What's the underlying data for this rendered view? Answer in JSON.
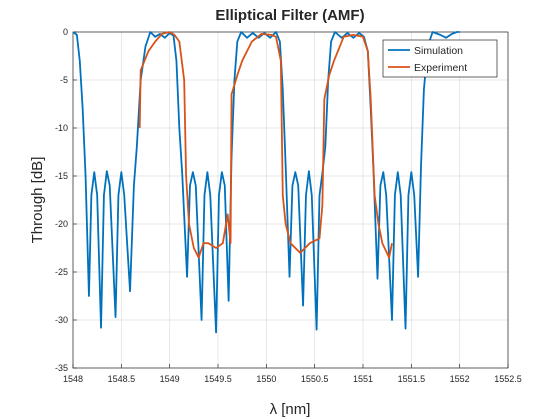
{
  "chart_data": {
    "type": "line",
    "title": "Elliptical Filter (AMF)",
    "xlabel": "λ [nm]",
    "ylabel": "Through [dB]",
    "xlim": [
      1548,
      1552.5
    ],
    "xticks": [
      1548,
      1548.5,
      1549,
      1549.5,
      1550,
      1550.5,
      1551,
      1551.5,
      1552,
      1552.5
    ],
    "ylim": [
      -35,
      0
    ],
    "yticks": [
      -35,
      -30,
      -25,
      -20,
      -15,
      -10,
      -5,
      0
    ],
    "grid": true,
    "legend": "upper right",
    "series": [
      {
        "name": "Simulation",
        "color": "#0072bd",
        "x": [
          1548.0,
          1548.04,
          1548.07,
          1548.1,
          1548.13,
          1548.165,
          1548.19,
          1548.22,
          1548.25,
          1548.29,
          1548.32,
          1548.35,
          1548.38,
          1548.44,
          1548.47,
          1548.5,
          1548.53,
          1548.59,
          1548.63,
          1548.66,
          1548.7,
          1548.75,
          1548.8,
          1548.85,
          1548.9,
          1548.95,
          1549.0,
          1549.04,
          1549.07,
          1549.1,
          1549.13,
          1549.18,
          1549.21,
          1549.24,
          1549.27,
          1549.33,
          1549.36,
          1549.39,
          1549.42,
          1549.48,
          1549.51,
          1549.54,
          1549.57,
          1549.61,
          1549.64,
          1549.67,
          1549.7,
          1549.74,
          1549.8,
          1549.86,
          1549.92,
          1549.98,
          1550.04,
          1550.1,
          1550.14,
          1550.17,
          1550.2,
          1550.24,
          1550.27,
          1550.3,
          1550.33,
          1550.38,
          1550.41,
          1550.44,
          1550.47,
          1550.52,
          1550.55,
          1550.58,
          1550.61,
          1550.64,
          1550.67,
          1550.71,
          1550.78,
          1550.84,
          1550.9,
          1550.96,
          1551.01,
          1551.05,
          1551.08,
          1551.11,
          1551.15,
          1551.18,
          1551.21,
          1551.24,
          1551.3,
          1551.33,
          1551.36,
          1551.39,
          1551.44,
          1551.47,
          1551.5,
          1551.53,
          1551.57,
          1551.6,
          1551.63,
          1551.67,
          1551.72,
          1551.8,
          1551.86,
          1551.92,
          1551.97,
          1552.0
        ],
        "values": [
          0,
          -0.3,
          -3,
          -8,
          -15,
          -27.5,
          -17,
          -14.6,
          -17,
          -30.8,
          -17,
          -14.5,
          -16,
          -29.7,
          -17,
          -14.6,
          -17,
          -27,
          -16,
          -12,
          -5,
          -1.5,
          0,
          -0.5,
          -0.2,
          -0.6,
          -0.1,
          -0.4,
          -3,
          -10,
          -14.8,
          -25.5,
          -16,
          -14.6,
          -16,
          -30,
          -17,
          -14.6,
          -17,
          -31.3,
          -17,
          -14.6,
          -16,
          -28,
          -13,
          -5,
          -1,
          0,
          -0.6,
          -0.1,
          -0.6,
          -0.1,
          -0.6,
          0,
          -1,
          -6,
          -14,
          -25.5,
          -16,
          -14.6,
          -16,
          -28.5,
          -17,
          -14.5,
          -17,
          -31,
          -17,
          -14.7,
          -12,
          -5,
          -1,
          0,
          -0.6,
          -0.1,
          -0.6,
          -0.1,
          -0.5,
          -2,
          -8,
          -14.8,
          -25.7,
          -16,
          -14.6,
          -17,
          -30,
          -17,
          -14.6,
          -17,
          -30.9,
          -17,
          -14.6,
          -17,
          -25.5,
          -14,
          -6,
          -1.5,
          0,
          -0.3,
          -0.6,
          -0.2,
          0,
          0
        ]
      },
      {
        "name": "Experiment",
        "color": "#d95319",
        "x": [
          1548.69,
          1548.7,
          1548.78,
          1548.85,
          1548.92,
          1549.0,
          1549.05,
          1549.1,
          1549.15,
          1549.17,
          1549.2,
          1549.25,
          1549.3,
          1549.35,
          1549.4,
          1549.48,
          1549.55,
          1549.6,
          1549.63,
          1549.64,
          1549.7,
          1549.75,
          1549.85,
          1549.95,
          1550.05,
          1550.1,
          1550.15,
          1550.17,
          1550.2,
          1550.25,
          1550.35,
          1550.45,
          1550.55,
          1550.58,
          1550.6,
          1550.65,
          1550.7,
          1550.8,
          1550.9,
          1551.0,
          1551.05,
          1551.08,
          1551.12,
          1551.16,
          1551.2,
          1551.27,
          1551.3
        ],
        "values": [
          -10,
          -4,
          -2,
          -1,
          -0.2,
          0,
          -0.3,
          -1,
          -5,
          -15,
          -20,
          -22.5,
          -23.5,
          -22,
          -22,
          -22.5,
          -22,
          -19,
          -22,
          -6.5,
          -4.5,
          -3,
          -1,
          -0.2,
          -0.3,
          -0.5,
          -3,
          -17,
          -20,
          -22,
          -23,
          -22,
          -21.5,
          -18,
          -7,
          -4.5,
          -3,
          -0.5,
          -0.3,
          -0.5,
          -2,
          -7,
          -17,
          -20,
          -22,
          -23.5,
          -22
        ]
      }
    ]
  }
}
